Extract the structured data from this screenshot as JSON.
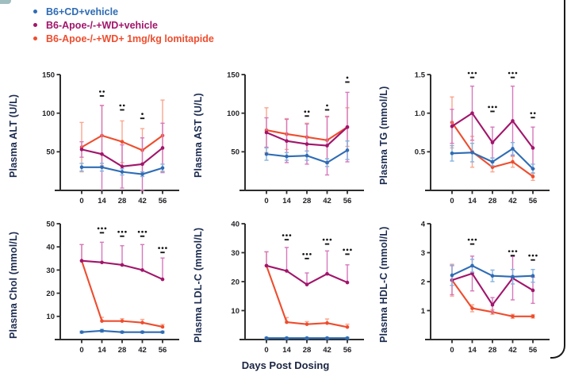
{
  "colors": {
    "blue": "#2e6cb5",
    "blue_err": "#86b2df",
    "magenta": "#a1156b",
    "magenta_err": "#d678bc",
    "red": "#ee4d2e",
    "red_err": "#f9a68e",
    "axis": "#2d2d2d",
    "tick_text": "#232327",
    "label_text": "#1c2c50",
    "sig": "#161616"
  },
  "legend": {
    "items": [
      {
        "label": "B6+CD+vehicle",
        "color": "blue"
      },
      {
        "label": "B6-Apoe-/-+WD+vehicle",
        "color": "magenta"
      },
      {
        "label": "B6-Apoe-/-+WD+ 1mg/kg lomitapide",
        "color": "red"
      }
    ]
  },
  "xlabel": "Days Post Dosing",
  "chart_data": [
    {
      "type": "line",
      "ylabel": "Plasma ALT (U/L)",
      "ylim": [
        0,
        150
      ],
      "yticks": [
        {
          "v": 50,
          "label": "50"
        },
        {
          "v": 100,
          "label": "100"
        },
        {
          "v": 150,
          "label": "150"
        }
      ],
      "x": [
        0,
        14,
        28,
        42,
        56
      ],
      "series": [
        {
          "name": "B6+CD+vehicle",
          "color": "blue",
          "values": [
            30,
            30,
            24,
            21,
            29
          ],
          "err": [
            5,
            5,
            4,
            3,
            5
          ]
        },
        {
          "name": "B6-Apoe-/-+WD+vehicle",
          "color": "magenta",
          "values": [
            53,
            47,
            31,
            34,
            55
          ],
          "err": [
            10,
            63,
            28,
            34,
            32
          ]
        },
        {
          "name": "B6-Apoe-/-+WD+ 1mg/kg lomitapide",
          "color": "red",
          "values": [
            56,
            71,
            63,
            52,
            71
          ],
          "err": [
            32,
            39,
            27,
            28,
            46
          ]
        }
      ],
      "significance": [
        {
          "x": 14,
          "stars": "**",
          "y": 128
        },
        {
          "x": 28,
          "stars": "**",
          "y": 110
        },
        {
          "x": 42,
          "stars": "*",
          "y": 99
        }
      ]
    },
    {
      "type": "line",
      "ylabel": "Plasma AST (U/L)",
      "ylim": [
        0,
        150
      ],
      "yticks": [
        {
          "v": 50,
          "label": "50"
        },
        {
          "v": 100,
          "label": "100"
        },
        {
          "v": 150,
          "label": "150"
        }
      ],
      "x": [
        0,
        14,
        28,
        42,
        56
      ],
      "series": [
        {
          "name": "B6+CD+vehicle",
          "color": "blue",
          "values": [
            47,
            44,
            45,
            36,
            52
          ],
          "err": [
            8,
            5,
            6,
            5,
            12
          ]
        },
        {
          "name": "B6-Apoe-/-+WD+vehicle",
          "color": "magenta",
          "values": [
            75,
            64,
            60,
            58,
            82
          ],
          "err": [
            19,
            28,
            26,
            38,
            45
          ]
        },
        {
          "name": "B6-Apoe-/-+WD+ 1mg/kg lomitapide",
          "color": "red",
          "values": [
            78,
            73,
            69,
            65,
            82
          ],
          "err": [
            29,
            20,
            18,
            30,
            25
          ]
        }
      ],
      "significance": [
        {
          "x": 28,
          "stars": "**",
          "y": 102
        },
        {
          "x": 42,
          "stars": "*",
          "y": 110
        },
        {
          "x": 56,
          "stars": "*",
          "y": 146
        }
      ]
    },
    {
      "type": "line",
      "ylabel": "Plasma TG (mmol/L)",
      "ylim": [
        0,
        1.5
      ],
      "yticks": [
        {
          "v": 0.5,
          "label": "0.5"
        },
        {
          "v": 1.0,
          "label": "1.0"
        },
        {
          "v": 1.5,
          "label": "1.5"
        }
      ],
      "x": [
        0,
        14,
        28,
        42,
        56
      ],
      "series": [
        {
          "name": "B6+CD+vehicle",
          "color": "blue",
          "values": [
            0.48,
            0.49,
            0.37,
            0.54,
            0.28
          ],
          "err": [
            0.1,
            0.12,
            0.05,
            0.08,
            0.06
          ]
        },
        {
          "name": "B6-Apoe-/-+WD+vehicle",
          "color": "magenta",
          "values": [
            0.83,
            1.0,
            0.62,
            0.9,
            0.55
          ],
          "err": [
            0.22,
            0.35,
            0.2,
            0.45,
            0.27
          ]
        },
        {
          "name": "B6-Apoe-/-+WD+ 1mg/kg lomitapide",
          "color": "red",
          "values": [
            0.88,
            0.5,
            0.3,
            0.37,
            0.18
          ],
          "err": [
            0.33,
            0.2,
            0.06,
            0.07,
            0.05
          ]
        }
      ],
      "significance": [
        {
          "x": 14,
          "stars": "***",
          "y": 1.52
        },
        {
          "x": 28,
          "stars": "***",
          "y": 1.08
        },
        {
          "x": 42,
          "stars": "***",
          "y": 1.52
        },
        {
          "x": 56,
          "stars": "**",
          "y": 1.0
        }
      ]
    },
    {
      "type": "line",
      "ylabel": "Plasma Chol (mmol/L)",
      "ylim": [
        0,
        50
      ],
      "yticks": [
        {
          "v": 10,
          "label": "10"
        },
        {
          "v": 20,
          "label": "20"
        },
        {
          "v": 30,
          "label": "30"
        },
        {
          "v": 40,
          "label": "40"
        },
        {
          "v": 50,
          "label": "50"
        }
      ],
      "x": [
        0,
        14,
        28,
        42,
        56
      ],
      "series": [
        {
          "name": "B6+CD+vehicle",
          "color": "blue",
          "values": [
            3.2,
            3.8,
            3.2,
            3.2,
            3.2
          ],
          "err": [
            0.4,
            0.6,
            0.4,
            0.4,
            0.4
          ]
        },
        {
          "name": "B6-Apoe-/-+WD+vehicle",
          "color": "magenta",
          "values": [
            34,
            33.3,
            32.2,
            30,
            26
          ],
          "err": [
            7,
            8.7,
            8.3,
            11,
            9.2
          ],
          "dir": "up"
        },
        {
          "name": "B6-Apoe-/-+WD+ 1mg/kg lomitapide",
          "color": "red",
          "values": [
            34,
            8,
            8,
            7.3,
            5.5
          ],
          "err": [
            7,
            1.6,
            1,
            1.4,
            1
          ],
          "dir": "up"
        }
      ],
      "significance": [
        {
          "x": 14,
          "stars": "***",
          "y": 48
        },
        {
          "x": 28,
          "stars": "***",
          "y": 46.5
        },
        {
          "x": 42,
          "stars": "***",
          "y": 46.5
        },
        {
          "x": 56,
          "stars": "***",
          "y": 39.5
        }
      ]
    },
    {
      "type": "line",
      "ylabel": "Plasma LDL-C (mmol/L)",
      "ylim": [
        0,
        40
      ],
      "yticks": [
        {
          "v": 10,
          "label": "10"
        },
        {
          "v": 20,
          "label": "20"
        },
        {
          "v": 30,
          "label": "30"
        },
        {
          "v": 40,
          "label": "40"
        }
      ],
      "x": [
        0,
        14,
        28,
        42,
        56
      ],
      "series": [
        {
          "name": "B6+CD+vehicle",
          "color": "blue",
          "values": [
            0.5,
            0.5,
            0.5,
            0.5,
            0.5
          ],
          "err": [
            0.25,
            0.25,
            0.25,
            0.25,
            0.25
          ]
        },
        {
          "name": "B6-Apoe-/-+WD+vehicle",
          "color": "magenta",
          "values": [
            25.5,
            23.7,
            19,
            22.7,
            19.7
          ],
          "err": [
            4.8,
            8.1,
            4,
            7.9,
            6.1
          ],
          "dir": "up"
        },
        {
          "name": "B6-Apoe-/-+WD+ 1mg/kg lomitapide",
          "color": "red",
          "values": [
            25.5,
            6,
            5.3,
            5.7,
            4.3
          ],
          "err": [
            4.8,
            1.6,
            0.9,
            1.4,
            1
          ],
          "dir": "up"
        }
      ],
      "significance": [
        {
          "x": 14,
          "stars": "***",
          "y": 36
        },
        {
          "x": 28,
          "stars": "***",
          "y": 29.5
        },
        {
          "x": 42,
          "stars": "***",
          "y": 34.5
        },
        {
          "x": 56,
          "stars": "***",
          "y": 31
        }
      ]
    },
    {
      "type": "line",
      "ylabel": "Plasma HDL-C (mmol/L)",
      "ylim": [
        0,
        4
      ],
      "yticks": [
        {
          "v": 1,
          "label": "1"
        },
        {
          "v": 2,
          "label": "2"
        },
        {
          "v": 3,
          "label": "3"
        },
        {
          "v": 4,
          "label": "4"
        }
      ],
      "x": [
        0,
        14,
        28,
        42,
        56
      ],
      "series": [
        {
          "name": "B6+CD+vehicle",
          "color": "blue",
          "values": [
            2.22,
            2.55,
            2.2,
            2.17,
            2.2
          ],
          "err": [
            0.35,
            0.22,
            0.2,
            0.25,
            0.22
          ]
        },
        {
          "name": "B6-Apoe-/-+WD+vehicle",
          "color": "magenta",
          "values": [
            2.05,
            2.28,
            1.2,
            2.12,
            1.7
          ],
          "err": [
            0.5,
            0.6,
            0.25,
            0.75,
            0.45
          ]
        },
        {
          "name": "B6-Apoe-/-+WD+ 1mg/kg lomitapide",
          "color": "red",
          "values": [
            2.05,
            1.08,
            0.95,
            0.8,
            0.8
          ],
          "err": [
            0.55,
            0.12,
            0.08,
            0.07,
            0.06
          ]
        }
      ],
      "significance": [
        {
          "x": 14,
          "stars": "***",
          "y": 3.45
        },
        {
          "x": 42,
          "stars": "***",
          "y": 3.05
        },
        {
          "x": 56,
          "stars": "***",
          "y": 2.9
        }
      ]
    }
  ]
}
